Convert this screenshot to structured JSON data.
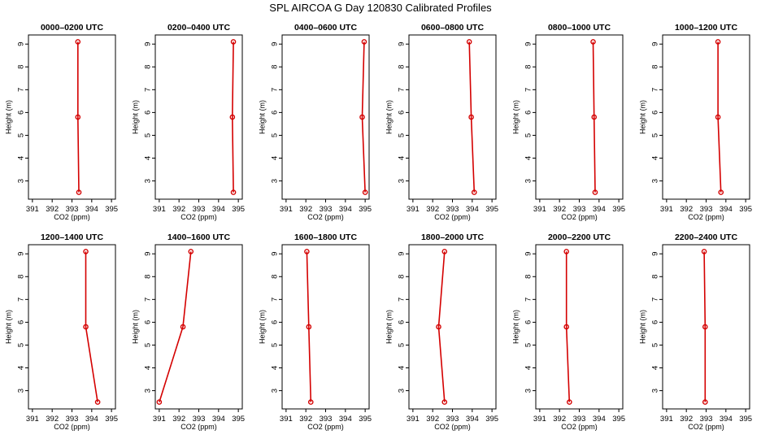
{
  "figure": {
    "title": "SPL AIRCOA G  Day 120830  Calibrated Profiles"
  },
  "style": {
    "line_color": "#d40000",
    "axis_color": "#000000",
    "background": "#ffffff"
  },
  "chart_data": [
    {
      "type": "line",
      "title": "0000–0200 UTC",
      "xlabel": "CO2 (ppm)",
      "ylabel": "Height (m)",
      "xlim": [
        390.8,
        395.2
      ],
      "ylim": [
        2.2,
        9.4
      ],
      "xticks": [
        391,
        392,
        393,
        394,
        395
      ],
      "yticks": [
        3,
        4,
        5,
        6,
        7,
        8,
        9
      ],
      "x": [
        393.35,
        393.3,
        393.3
      ],
      "y": [
        2.5,
        5.8,
        9.1
      ]
    },
    {
      "type": "line",
      "title": "0200–0400 UTC",
      "xlabel": "CO2 (ppm)",
      "ylabel": "Height (m)",
      "xlim": [
        390.8,
        395.2
      ],
      "ylim": [
        2.2,
        9.4
      ],
      "xticks": [
        391,
        392,
        393,
        394,
        395
      ],
      "yticks": [
        3,
        4,
        5,
        6,
        7,
        8,
        9
      ],
      "x": [
        394.75,
        394.7,
        394.75
      ],
      "y": [
        2.5,
        5.8,
        9.1
      ]
    },
    {
      "type": "line",
      "title": "0400–0600 UTC",
      "xlabel": "CO2 (ppm)",
      "ylabel": "Height (m)",
      "xlim": [
        390.8,
        395.2
      ],
      "ylim": [
        2.2,
        9.4
      ],
      "xticks": [
        391,
        392,
        393,
        394,
        395
      ],
      "yticks": [
        3,
        4,
        5,
        6,
        7,
        8,
        9
      ],
      "x": [
        395.0,
        394.85,
        394.95
      ],
      "y": [
        2.5,
        5.8,
        9.1
      ]
    },
    {
      "type": "line",
      "title": "0600–0800 UTC",
      "xlabel": "CO2 (ppm)",
      "ylabel": "Height (m)",
      "xlim": [
        390.8,
        395.2
      ],
      "ylim": [
        2.2,
        9.4
      ],
      "xticks": [
        391,
        392,
        393,
        394,
        395
      ],
      "yticks": [
        3,
        4,
        5,
        6,
        7,
        8,
        9
      ],
      "x": [
        394.1,
        393.95,
        393.85
      ],
      "y": [
        2.5,
        5.8,
        9.1
      ]
    },
    {
      "type": "line",
      "title": "0800–1000 UTC",
      "xlabel": "CO2 (ppm)",
      "ylabel": "Height (m)",
      "xlim": [
        390.8,
        395.2
      ],
      "ylim": [
        2.2,
        9.4
      ],
      "xticks": [
        391,
        392,
        393,
        394,
        395
      ],
      "yticks": [
        3,
        4,
        5,
        6,
        7,
        8,
        9
      ],
      "x": [
        393.8,
        393.75,
        393.7
      ],
      "y": [
        2.5,
        5.8,
        9.1
      ]
    },
    {
      "type": "line",
      "title": "1000–1200 UTC",
      "xlabel": "CO2 (ppm)",
      "ylabel": "Height (m)",
      "xlim": [
        390.8,
        395.2
      ],
      "ylim": [
        2.2,
        9.4
      ],
      "xticks": [
        391,
        392,
        393,
        394,
        395
      ],
      "yticks": [
        3,
        4,
        5,
        6,
        7,
        8,
        9
      ],
      "x": [
        393.75,
        393.6,
        393.6
      ],
      "y": [
        2.5,
        5.8,
        9.1
      ]
    },
    {
      "type": "line",
      "title": "1200–1400 UTC",
      "xlabel": "CO2 (ppm)",
      "ylabel": "Height (m)",
      "xlim": [
        390.8,
        395.2
      ],
      "ylim": [
        2.2,
        9.4
      ],
      "xticks": [
        391,
        392,
        393,
        394,
        395
      ],
      "yticks": [
        3,
        4,
        5,
        6,
        7,
        8,
        9
      ],
      "x": [
        394.3,
        393.7,
        393.7
      ],
      "y": [
        2.5,
        5.8,
        9.1
      ]
    },
    {
      "type": "line",
      "title": "1400–1600 UTC",
      "xlabel": "CO2 (ppm)",
      "ylabel": "Height (m)",
      "xlim": [
        390.8,
        395.2
      ],
      "ylim": [
        2.2,
        9.4
      ],
      "xticks": [
        391,
        392,
        393,
        394,
        395
      ],
      "yticks": [
        3,
        4,
        5,
        6,
        7,
        8,
        9
      ],
      "x": [
        391.0,
        392.2,
        392.6
      ],
      "y": [
        2.5,
        5.8,
        9.1
      ]
    },
    {
      "type": "line",
      "title": "1600–1800 UTC",
      "xlabel": "CO2 (ppm)",
      "ylabel": "Height (m)",
      "xlim": [
        390.8,
        395.2
      ],
      "ylim": [
        2.2,
        9.4
      ],
      "xticks": [
        391,
        392,
        393,
        394,
        395
      ],
      "yticks": [
        3,
        4,
        5,
        6,
        7,
        8,
        9
      ],
      "x": [
        392.25,
        392.15,
        392.05
      ],
      "y": [
        2.5,
        5.8,
        9.1
      ]
    },
    {
      "type": "line",
      "title": "1800–2000 UTC",
      "xlabel": "CO2 (ppm)",
      "ylabel": "Height (m)",
      "xlim": [
        390.8,
        395.2
      ],
      "ylim": [
        2.2,
        9.4
      ],
      "xticks": [
        391,
        392,
        393,
        394,
        395
      ],
      "yticks": [
        3,
        4,
        5,
        6,
        7,
        8,
        9
      ],
      "x": [
        392.6,
        392.3,
        392.6
      ],
      "y": [
        2.5,
        5.8,
        9.1
      ]
    },
    {
      "type": "line",
      "title": "2000–2200 UTC",
      "xlabel": "CO2 (ppm)",
      "ylabel": "Height (m)",
      "xlim": [
        390.8,
        395.2
      ],
      "ylim": [
        2.2,
        9.4
      ],
      "xticks": [
        391,
        392,
        393,
        394,
        395
      ],
      "yticks": [
        3,
        4,
        5,
        6,
        7,
        8,
        9
      ],
      "x": [
        392.5,
        392.35,
        392.35
      ],
      "y": [
        2.5,
        5.8,
        9.1
      ]
    },
    {
      "type": "line",
      "title": "2200–2400 UTC",
      "xlabel": "CO2 (ppm)",
      "ylabel": "Height (m)",
      "xlim": [
        390.8,
        395.2
      ],
      "ylim": [
        2.2,
        9.4
      ],
      "xticks": [
        391,
        392,
        393,
        394,
        395
      ],
      "yticks": [
        3,
        4,
        5,
        6,
        7,
        8,
        9
      ],
      "x": [
        392.95,
        392.95,
        392.9
      ],
      "y": [
        2.5,
        5.8,
        9.1
      ]
    }
  ]
}
